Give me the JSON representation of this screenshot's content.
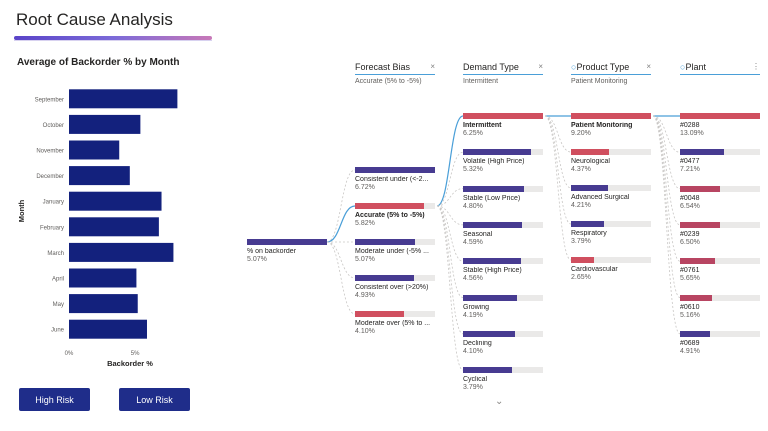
{
  "page_title": "Root Cause Analysis",
  "chart_data": {
    "type": "bar",
    "orientation": "horizontal",
    "title": "Average of Backorder % by Month",
    "xlabel": "Backorder %",
    "ylabel": "Month",
    "categories": [
      "September",
      "October",
      "November",
      "December",
      "January",
      "February",
      "March",
      "April",
      "May",
      "June"
    ],
    "values": [
      8.2,
      5.4,
      3.8,
      4.6,
      7.0,
      6.8,
      7.9,
      5.1,
      5.2,
      5.9
    ],
    "xlim": [
      0,
      8.7
    ],
    "xticks": [
      "0%",
      "5%"
    ],
    "xtick_values": [
      0,
      5
    ],
    "color": "#13217d",
    "legend": false
  },
  "buttons": {
    "high_risk": "High Risk",
    "low_risk": "Low Risk"
  },
  "tree": {
    "colors": {
      "selected": "#d04f5f",
      "purple": "#473b91",
      "pink": "#b84562",
      "track": "#eae9e8",
      "connector": "#4a9fd8"
    },
    "root": {
      "label": "% on backorder",
      "value": "5.07%",
      "pct": 5.07
    },
    "columns": [
      {
        "name": "Forecast Bias",
        "sub": "Accurate (5% to -5%)",
        "close": "×",
        "icon": ""
      },
      {
        "name": "Demand Type",
        "sub": "Intermittent",
        "close": "×",
        "icon": ""
      },
      {
        "name": "Product Type",
        "sub": "Patient Monitoring",
        "close": "×",
        "icon": "lightbulb-icon"
      },
      {
        "name": "Plant",
        "sub": "",
        "close": "⋮",
        "icon": "lightbulb-icon"
      }
    ],
    "forecast_bias": [
      {
        "label": "Consistent under (<-2...",
        "value": "6.72%",
        "pct": 6.72,
        "color": "purple"
      },
      {
        "label": "Accurate (5% to -5%)",
        "value": "5.82%",
        "pct": 5.82,
        "color": "selected",
        "selected": true
      },
      {
        "label": "Moderate under (-5% ...",
        "value": "5.07%",
        "pct": 5.07,
        "color": "purple"
      },
      {
        "label": "Consistent over (>20%)",
        "value": "4.93%",
        "pct": 4.93,
        "color": "purple"
      },
      {
        "label": "Moderate over (5% to ...",
        "value": "4.10%",
        "pct": 4.1,
        "color": "selected"
      }
    ],
    "demand_type": [
      {
        "label": "Intermittent",
        "value": "6.25%",
        "pct": 6.25,
        "color": "selected",
        "selected": true
      },
      {
        "label": "Volatile (High Price)",
        "value": "5.32%",
        "pct": 5.32,
        "color": "purple"
      },
      {
        "label": "Stable (Low Price)",
        "value": "4.80%",
        "pct": 4.8,
        "color": "purple"
      },
      {
        "label": "Seasonal",
        "value": "4.59%",
        "pct": 4.59,
        "color": "purple"
      },
      {
        "label": "Stable (High Price)",
        "value": "4.56%",
        "pct": 4.56,
        "color": "purple"
      },
      {
        "label": "Growing",
        "value": "4.19%",
        "pct": 4.19,
        "color": "purple"
      },
      {
        "label": "Declining",
        "value": "4.10%",
        "pct": 4.1,
        "color": "purple"
      },
      {
        "label": "Cyclical",
        "value": "3.79%",
        "pct": 3.79,
        "color": "purple"
      }
    ],
    "product_type": [
      {
        "label": "Patient Monitoring",
        "value": "9.20%",
        "pct": 9.2,
        "color": "selected",
        "selected": true
      },
      {
        "label": "Neurological",
        "value": "4.37%",
        "pct": 4.37,
        "color": "selected"
      },
      {
        "label": "Advanced Surgical",
        "value": "4.21%",
        "pct": 4.21,
        "color": "purple"
      },
      {
        "label": "Respiratory",
        "value": "3.79%",
        "pct": 3.79,
        "color": "purple"
      },
      {
        "label": "Cardiovascular",
        "value": "2.65%",
        "pct": 2.65,
        "color": "selected"
      }
    ],
    "plant": [
      {
        "label": "#0288",
        "value": "13.09%",
        "pct": 13.09,
        "color": "selected"
      },
      {
        "label": "#0477",
        "value": "7.21%",
        "pct": 7.21,
        "color": "purple"
      },
      {
        "label": "#0048",
        "value": "6.54%",
        "pct": 6.54,
        "color": "pink"
      },
      {
        "label": "#0239",
        "value": "6.50%",
        "pct": 6.5,
        "color": "pink"
      },
      {
        "label": "#0761",
        "value": "5.65%",
        "pct": 5.65,
        "color": "pink"
      },
      {
        "label": "#0610",
        "value": "5.16%",
        "pct": 5.16,
        "color": "pink"
      },
      {
        "label": "#0689",
        "value": "4.91%",
        "pct": 4.91,
        "color": "purple"
      }
    ],
    "expand_icon": "chevron-down-icon"
  }
}
